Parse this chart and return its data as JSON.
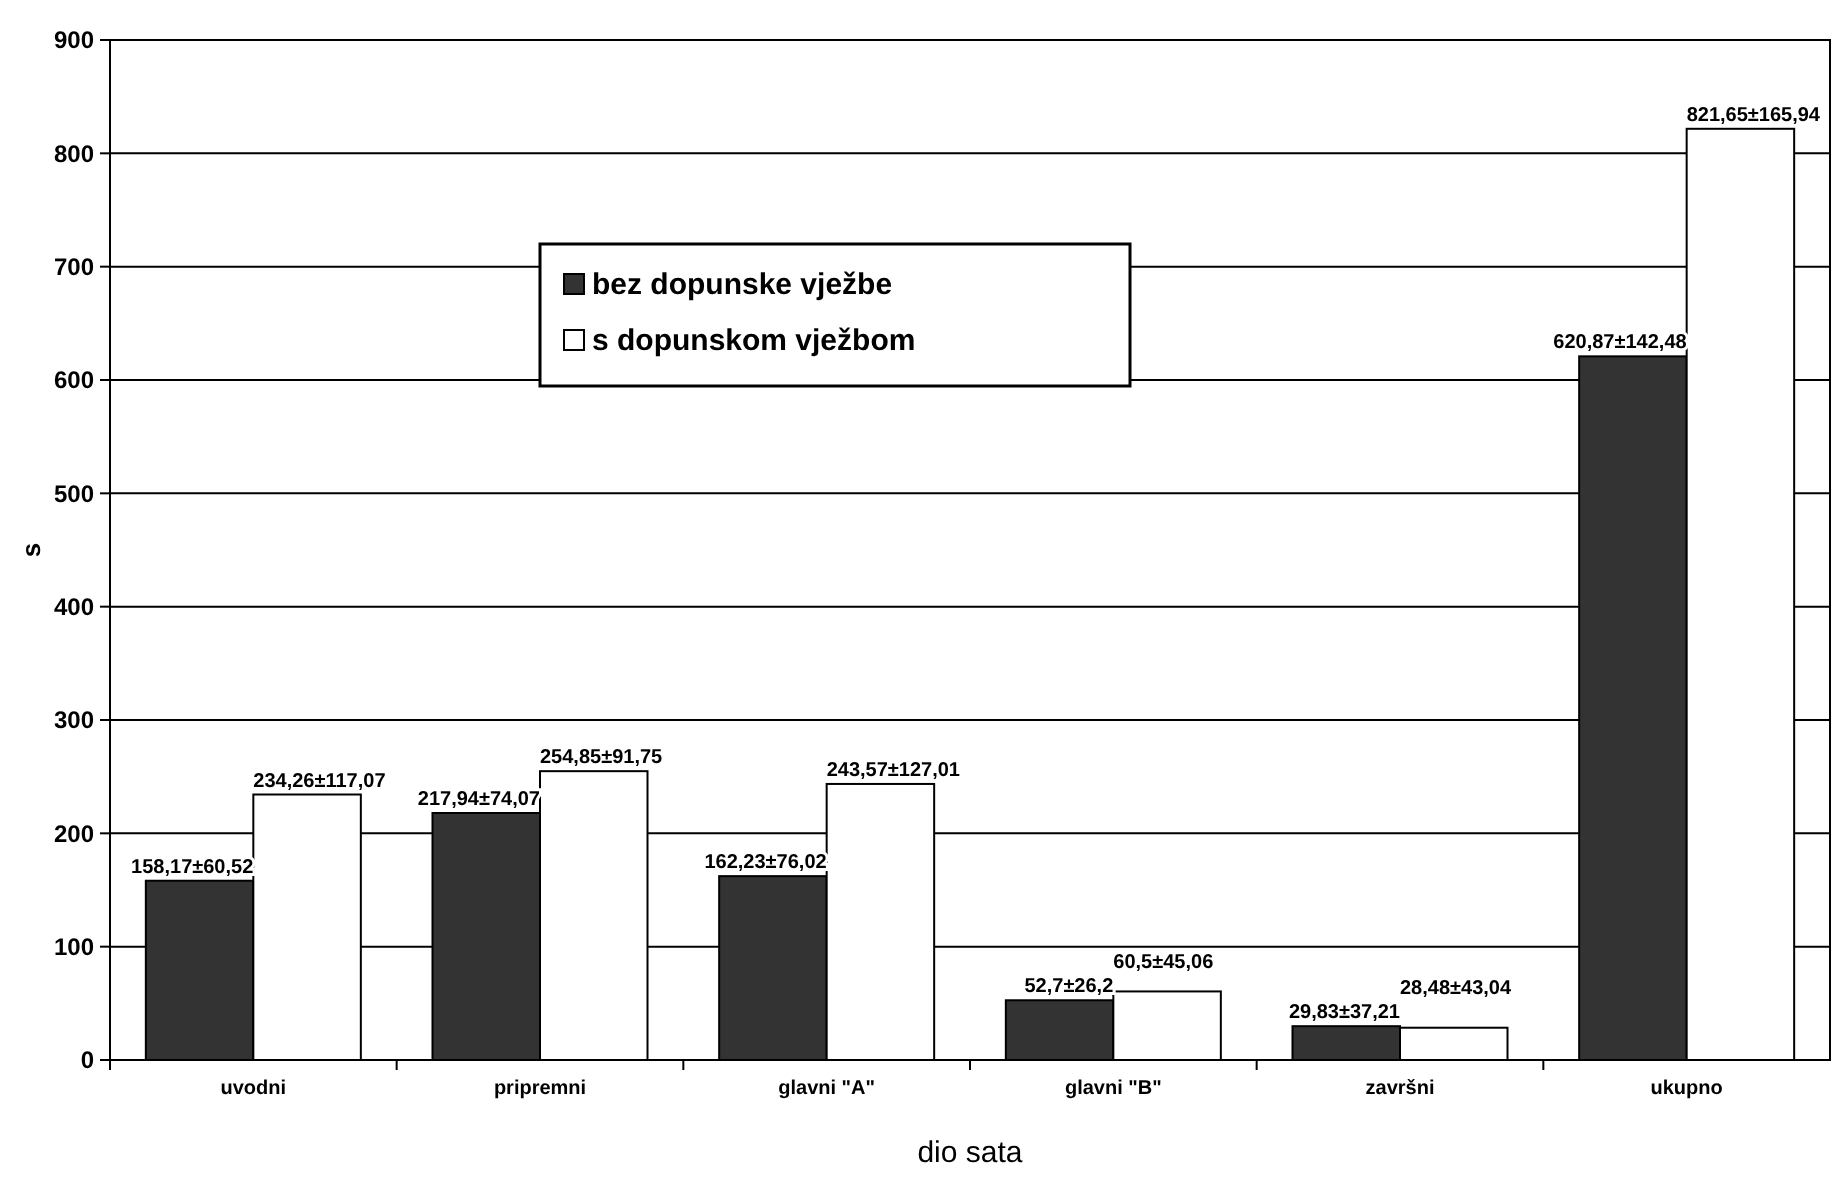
{
  "chart_data": {
    "type": "bar",
    "xlabel": "dio sata",
    "ylabel": "s",
    "categories": [
      "uvodni",
      "pripremni",
      "glavni \"A\"",
      "glavni \"B\"",
      "završni",
      "ukupno"
    ],
    "series": [
      {
        "name": "bez dopunske vježbe",
        "color": "#333333",
        "values": [
          158.17,
          217.94,
          162.23,
          52.7,
          29.83,
          620.87
        ],
        "value_labels": [
          "158,17±60,52",
          "217,94±74,07",
          "162,23±76,02",
          "52,7±26,2",
          "29,83±37,21",
          "620,87±142,48"
        ]
      },
      {
        "name": "s dopunskom vježbom",
        "color": "#ffffff",
        "values": [
          234.26,
          254.85,
          243.57,
          60.5,
          28.48,
          821.65
        ],
        "value_labels": [
          "234,26±117,07",
          "254,85±91,75",
          "243,57±127,01",
          "60,5±45,06",
          "28,48±43,04",
          "821,65±165,94"
        ]
      }
    ],
    "ylim": [
      0,
      900
    ],
    "yticks": [
      0,
      100,
      200,
      300,
      400,
      500,
      600,
      700,
      800,
      900
    ],
    "grid": "y",
    "legend": "top left"
  }
}
